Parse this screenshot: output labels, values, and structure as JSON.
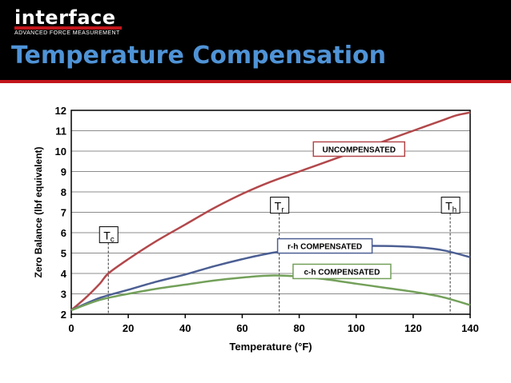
{
  "brand": {
    "name": "interface",
    "tagline": "ADVANCED FORCE MEASUREMENT"
  },
  "slide": {
    "title": "Temperature Compensation"
  },
  "colors": {
    "header_bg": "#000000",
    "accent_red": "#c2161b",
    "title_blue": "#4f93d6",
    "uncompensated": "#b2484b",
    "rh": "#4c5f93",
    "ch": "#73a05a"
  },
  "chart_data": {
    "type": "line",
    "xlabel": "Temperature (°F)",
    "ylabel": "Zero Balance (lbf equivalent)",
    "xlim": [
      0,
      140
    ],
    "ylim": [
      2,
      12
    ],
    "xticks": [
      0,
      20,
      40,
      60,
      80,
      100,
      120,
      140
    ],
    "yticks": [
      2,
      3,
      4,
      5,
      6,
      7,
      8,
      9,
      10,
      11,
      12
    ],
    "grid": "horizontal",
    "series": [
      {
        "name": "UNCOMPENSATED",
        "color": "#b2484b",
        "x": [
          0,
          5,
          10,
          13,
          20,
          30,
          40,
          50,
          60,
          70,
          80,
          90,
          100,
          110,
          120,
          130,
          135,
          140
        ],
        "y": [
          2.2,
          2.8,
          3.5,
          4.0,
          4.7,
          5.6,
          6.4,
          7.2,
          7.9,
          8.5,
          9.0,
          9.5,
          10.0,
          10.5,
          11.0,
          11.5,
          11.75,
          11.9
        ]
      },
      {
        "name": "r-h COMPENSATED",
        "color": "#4c5f93",
        "x": [
          0,
          10,
          20,
          30,
          40,
          50,
          60,
          70,
          80,
          90,
          100,
          110,
          120,
          130,
          140
        ],
        "y": [
          2.2,
          2.8,
          3.2,
          3.6,
          3.95,
          4.35,
          4.7,
          5.0,
          5.2,
          5.3,
          5.35,
          5.35,
          5.3,
          5.15,
          4.8
        ]
      },
      {
        "name": "c-h COMPENSATED",
        "color": "#73a05a",
        "x": [
          0,
          10,
          20,
          30,
          40,
          50,
          60,
          70,
          80,
          90,
          100,
          110,
          120,
          130,
          140
        ],
        "y": [
          2.2,
          2.7,
          3.0,
          3.25,
          3.45,
          3.65,
          3.8,
          3.9,
          3.85,
          3.7,
          3.5,
          3.3,
          3.1,
          2.85,
          2.45
        ]
      }
    ],
    "markers": [
      {
        "main": "T",
        "sub": "c",
        "x": 13
      },
      {
        "main": "T",
        "sub": "r",
        "x": 73
      },
      {
        "main": "T",
        "sub": "h",
        "x": 133
      }
    ]
  }
}
